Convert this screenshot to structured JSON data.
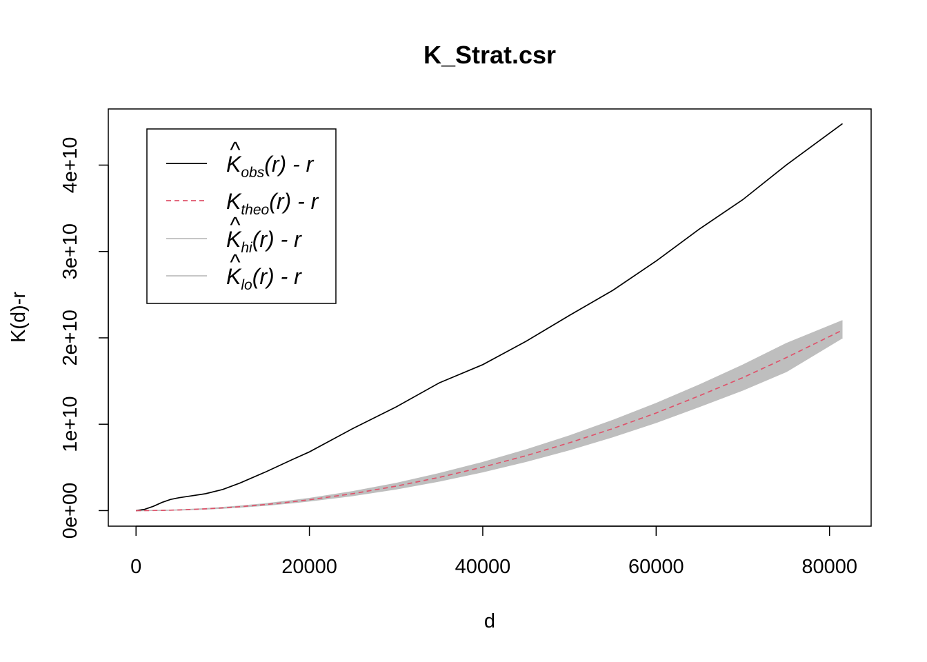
{
  "chart_data": {
    "type": "line",
    "title": "K_Strat.csr",
    "xlabel": "d",
    "ylabel": "K(d)-r",
    "xlim": [
      -3200,
      84800
    ],
    "ylim": [
      -1800000000,
      46500000000
    ],
    "x_ticks": [
      0,
      20000,
      40000,
      60000,
      80000
    ],
    "x_tick_labels": [
      "0",
      "20000",
      "40000",
      "60000",
      "80000"
    ],
    "y_ticks": [
      0,
      10000000000,
      20000000000,
      30000000000,
      40000000000
    ],
    "y_tick_labels": [
      "0e+00",
      "1e+10",
      "2e+10",
      "3e+10",
      "4e+10"
    ],
    "grid": false,
    "legend_position": "top-left",
    "x": [
      0,
      1000,
      2000,
      3000,
      4000,
      5000,
      6000,
      8000,
      10000,
      12000,
      15000,
      18000,
      20000,
      25000,
      30000,
      35000,
      40000,
      45000,
      50000,
      55000,
      60000,
      65000,
      70000,
      75000,
      81500
    ],
    "series": [
      {
        "name": "K_obs(r) - r",
        "legend": {
          "base": "K",
          "hat": true,
          "sub": "obs",
          "suffix": "(r) - r"
        },
        "color": "#000000",
        "style": "solid",
        "values": [
          0,
          150000000,
          500000000,
          950000000,
          1300000000,
          1500000000,
          1650000000,
          1950000000,
          2450000000,
          3200000000,
          4500000000,
          5900000000,
          6800000000,
          9500000000,
          12000000000,
          14800000000,
          16900000000,
          19600000000,
          22600000000,
          25500000000,
          28900000000,
          32600000000,
          36000000000,
          40000000000,
          44800000000
        ]
      },
      {
        "name": "K_theo(r) - r",
        "legend": {
          "base": "K",
          "hat": false,
          "sub": "theo",
          "suffix": "(r) - r"
        },
        "color": "#DF536B",
        "style": "dashed",
        "values": [
          0,
          3140000,
          12600000,
          28300000,
          50300000,
          78500000,
          113000000,
          201000000,
          314000000,
          452000000,
          707000000,
          1020000000,
          1260000000,
          1960000000,
          2830000000,
          3850000000,
          5030000000,
          6360000000,
          7850000000,
          9500000000,
          11300000000,
          13300000000,
          15400000000,
          17700000000,
          20900000000
        ]
      },
      {
        "name": "K_hi(r) - r",
        "legend": {
          "base": "K",
          "hat": true,
          "sub": "hi",
          "suffix": "(r) - r"
        },
        "color": "#BEBEBE",
        "style": "band-upper",
        "values": [
          0,
          4000000,
          15000000,
          33000000,
          58000000,
          90000000,
          130000000,
          230000000,
          360000000,
          520000000,
          800000000,
          1150000000,
          1420000000,
          2200000000,
          3150000000,
          4300000000,
          5580000000,
          7030000000,
          8650000000,
          10450000000,
          12400000000,
          14550000000,
          16850000000,
          19330000000,
          22000000000
        ]
      },
      {
        "name": "K_lo(r) - r",
        "legend": {
          "base": "K",
          "hat": true,
          "sub": "lo",
          "suffix": "(r) - r"
        },
        "color": "#BEBEBE",
        "style": "band-lower",
        "values": [
          0,
          2500000,
          10000000,
          24000000,
          43000000,
          67000000,
          97000000,
          175000000,
          275000000,
          395000000,
          620000000,
          900000000,
          1110000000,
          1730000000,
          2500000000,
          3420000000,
          4480000000,
          5690000000,
          7040000000,
          8550000000,
          10200000000,
          12050000000,
          13950000000,
          16080000000,
          20000000000
        ]
      }
    ]
  }
}
